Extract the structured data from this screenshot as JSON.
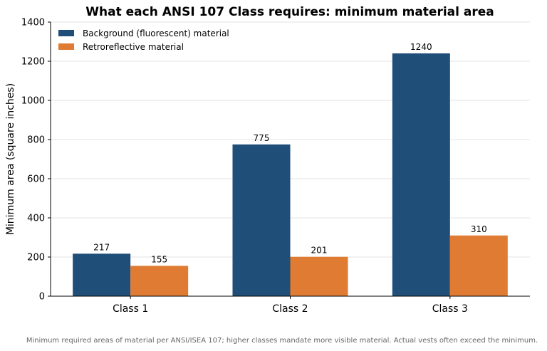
{
  "chart_data": {
    "type": "bar",
    "title": "What each ANSI 107 Class requires: minimum material area",
    "xlabel": "",
    "ylabel": "Minimum area (square inches)",
    "ylim": [
      0,
      1400
    ],
    "yticks": [
      0,
      200,
      400,
      600,
      800,
      1000,
      1200,
      1400
    ],
    "grid": "y",
    "legend_position": "top-left",
    "categories": [
      "Class 1",
      "Class 2",
      "Class 3"
    ],
    "series": [
      {
        "name": "Background (fluorescent) material",
        "values": [
          217,
          775,
          1240
        ],
        "color": "#1f4e79"
      },
      {
        "name": "Retroreflective material",
        "values": [
          155,
          201,
          310
        ],
        "color": "#e07b33"
      }
    ]
  },
  "caption": "Minimum required areas of material per ANSI/ISEA 107; higher classes mandate more visible material. Actual vests often exceed the minimum."
}
